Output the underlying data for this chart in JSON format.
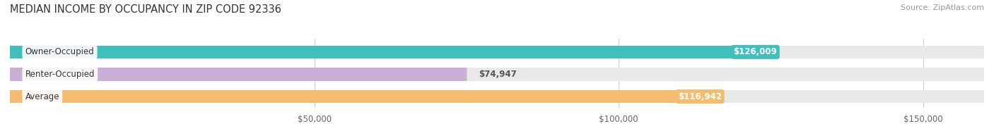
{
  "title": "MEDIAN INCOME BY OCCUPANCY IN ZIP CODE 92336",
  "source": "Source: ZipAtlas.com",
  "categories": [
    "Owner-Occupied",
    "Renter-Occupied",
    "Average"
  ],
  "values": [
    126009,
    74947,
    116942
  ],
  "labels": [
    "$126,009",
    "$74,947",
    "$116,942"
  ],
  "bar_colors": [
    "#40bfbf",
    "#c9aed6",
    "#f5bc6e"
  ],
  "background_color": "#ffffff",
  "bar_bg_color": "#e8e8e8",
  "xlim": [
    0,
    160000
  ],
  "xticks": [
    50000,
    100000,
    150000
  ],
  "xtick_labels": [
    "$50,000",
    "$100,000",
    "$150,000"
  ],
  "title_fontsize": 10.5,
  "label_fontsize": 8.5,
  "source_fontsize": 8,
  "bar_height": 0.58,
  "bar_gap": 0.15
}
